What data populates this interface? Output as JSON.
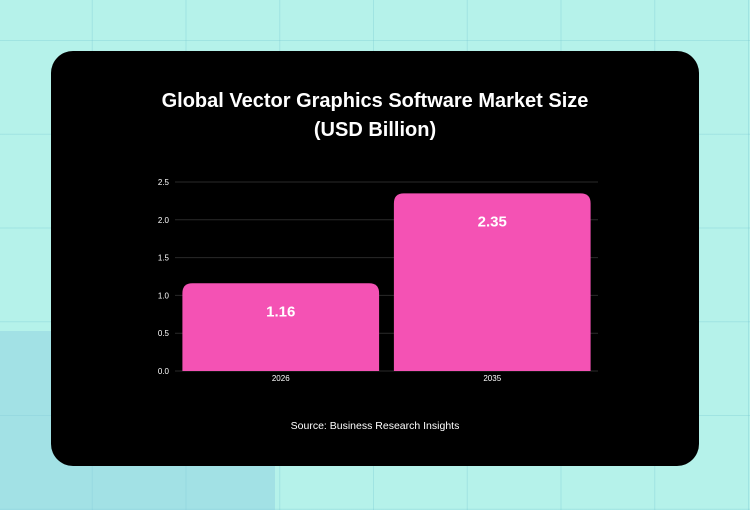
{
  "colors": {
    "background": "#b5f2ea",
    "card": "#000000",
    "bar": "#f452b4",
    "text": "#ffffff",
    "gridline": "#2a2a2a"
  },
  "chart_data": {
    "type": "bar",
    "title_lines": [
      "Global Vector Graphics Software Market Size",
      "(USD Billion)"
    ],
    "categories": [
      "2026",
      "2035"
    ],
    "values": [
      1.16,
      2.35
    ],
    "data_labels": [
      "1.16",
      "2.35"
    ],
    "yticks": [
      "0.0",
      "0.5",
      "1.0",
      "1.5",
      "2.0",
      "2.5"
    ],
    "ylim": [
      0,
      2.5
    ],
    "grid": true,
    "legend": "none",
    "source": "Source: Business Research Insights"
  }
}
